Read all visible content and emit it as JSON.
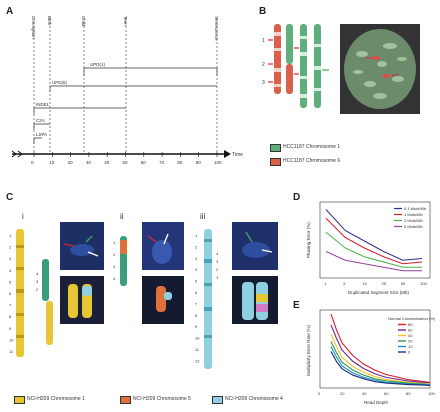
{
  "panels": {
    "A": {
      "label": "A",
      "time_label": "Time",
      "ticks": [
        "0",
        "10",
        "20",
        "30",
        "40",
        "50",
        "60",
        "70",
        "80",
        "90",
        "100"
      ],
      "stage_labels": [
        "Conception",
        "Birth",
        "Child",
        "Teen",
        "Senescence"
      ],
      "event_labels": [
        "INDEL",
        "C2A",
        "LSPA"
      ],
      "region_labels": [
        "UPD(1)",
        "UPD(6)"
      ]
    },
    "B": {
      "label": "B",
      "chr_numbers": [
        "1",
        "2",
        "3"
      ],
      "legend": [
        "HCC1187 Chromosome 1",
        "HCC1187 Chromosome 6"
      ],
      "colors": {
        "chr1": "#5fae7e",
        "chr6": "#d9604b"
      }
    },
    "C": {
      "label": "C",
      "sub_labels": [
        "i",
        "ii",
        "iii"
      ],
      "left_ticks": [
        "1",
        "2",
        "3",
        "4",
        "5",
        "6",
        "7",
        "8",
        "9",
        "10",
        "11"
      ],
      "mid_ticks": [
        "1",
        "2",
        "3",
        "4"
      ],
      "right_ticks": [
        "1",
        "2",
        "3",
        "4",
        "5",
        "6",
        "7",
        "8",
        "9",
        "10",
        "11",
        "12"
      ],
      "callouts_i": [
        "4",
        "3",
        "2"
      ],
      "callouts_iii": [
        "4",
        "3",
        "2",
        "1"
      ],
      "legend": [
        "NCI-H209 Chromosome 1",
        "NCI-H209 Chromosome 5",
        "NCI-H209 Chromosome 4"
      ],
      "colors": {
        "chr1": "#e8c534",
        "chr5": "#e0703a",
        "chr4": "#8fd0e0"
      }
    },
    "D": {
      "label": "D",
      "ylabel": "Phasing Error (%)",
      "xlabel": "Duplicated Segment Size (Mb)",
      "xticks": [
        "1",
        "5",
        "10",
        "25",
        "50",
        "100"
      ]
    },
    "E": {
      "label": "E",
      "ylabel": "Multiplicity Error Rate (%)",
      "xlabel": "Read Depth",
      "xticks": [
        "0",
        "20",
        "40",
        "60",
        "80",
        "100"
      ],
      "legend_title": "Normal Contamination (%)"
    }
  },
  "chart_data": [
    {
      "type": "line",
      "x": [
        1,
        5,
        10,
        25,
        50,
        100
      ],
      "series": [
        {
          "name": "0.1 Muts/Mb",
          "color": "#2b2e8c",
          "values": [
            38,
            26,
            20,
            14,
            9,
            10
          ]
        },
        {
          "name": "1 Muts/Mb",
          "color": "#d81b2a",
          "values": [
            33,
            22,
            16,
            11,
            7,
            8
          ]
        },
        {
          "name": "2 Muts/Mb",
          "color": "#44b649",
          "values": [
            25,
            16,
            11,
            8,
            5,
            5
          ]
        },
        {
          "name": "5 Muts/Mb",
          "color": "#9b3d9a",
          "values": [
            14,
            9,
            7,
            5,
            3,
            3
          ]
        }
      ]
    },
    {
      "type": "line",
      "x": [
        10,
        15,
        20,
        30,
        40,
        50,
        60,
        80,
        100
      ],
      "series": [
        {
          "name": "80",
          "color": "#d81b2a",
          "values": [
            100,
            78,
            60,
            42,
            30,
            22,
            16,
            9,
            5
          ]
        },
        {
          "name": "60",
          "color": "#6a2a8f",
          "values": [
            85,
            66,
            50,
            34,
            24,
            17,
            12,
            7,
            4
          ]
        },
        {
          "name": "40",
          "color": "#f2c21b",
          "values": [
            72,
            55,
            40,
            27,
            19,
            13,
            9,
            5,
            3
          ]
        },
        {
          "name": "20",
          "color": "#2d9a4d",
          "values": [
            62,
            46,
            33,
            22,
            15,
            10,
            7,
            4,
            2
          ]
        },
        {
          "name": "10",
          "color": "#1f8fd0",
          "values": [
            55,
            40,
            28,
            18,
            12,
            8,
            5,
            3,
            2
          ]
        },
        {
          "name": "0",
          "color": "#1b2f7a",
          "values": [
            48,
            34,
            24,
            15,
            10,
            6,
            4,
            2,
            1
          ]
        }
      ]
    }
  ]
}
